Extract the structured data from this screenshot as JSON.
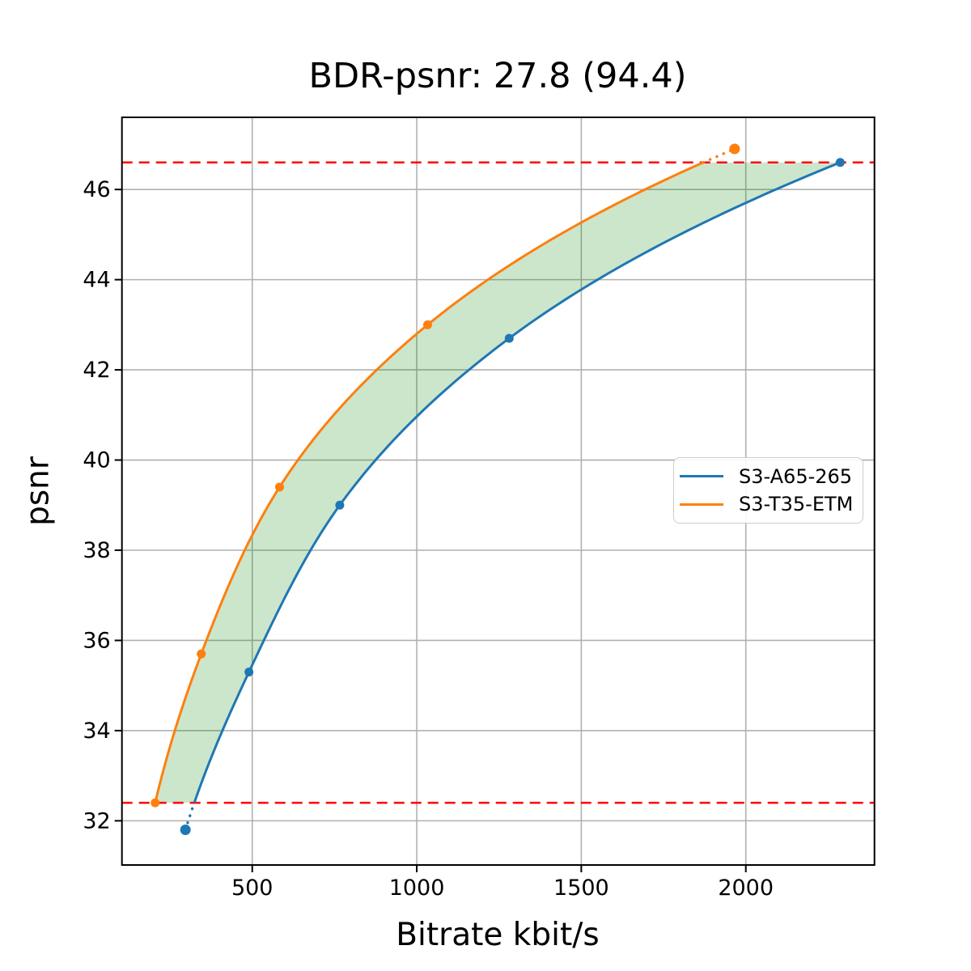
{
  "chart_data": {
    "type": "line",
    "title": "BDR-psnr: 27.8 (94.4)",
    "xlabel": "Bitrate kbit/s",
    "ylabel": "psnr",
    "xlim": [
      104,
      2391
    ],
    "ylim": [
      31.02,
      47.6
    ],
    "x_ticks": [
      500,
      1000,
      1500,
      2000
    ],
    "y_ticks": [
      32,
      34,
      36,
      38,
      40,
      42,
      44,
      46
    ],
    "grid": true,
    "grid_color": "#b0b0b0",
    "legend_position": "center right",
    "series": [
      {
        "name": "S3-A65-265",
        "color": "#1f77b4",
        "points_x_bitrate": [
          297,
          490,
          766,
          1281,
          2287
        ],
        "points_y_psnr": [
          31.8,
          35.3,
          39.0,
          42.7,
          46.6
        ]
      },
      {
        "name": "S3-T35-ETM",
        "color": "#ff7f0e",
        "points_x_bitrate": [
          205,
          345,
          583,
          1033,
          1966
        ],
        "points_y_psnr": [
          32.4,
          35.7,
          39.4,
          43.0,
          46.9
        ]
      }
    ],
    "reference_lines": {
      "color": "#ff0000",
      "style": "dashed",
      "psnr_values": [
        32.4,
        46.6
      ]
    },
    "band": {
      "fill_color": "#008000",
      "opacity": 0.2,
      "psnr_range": [
        32.4,
        46.6
      ]
    },
    "bdr_value": "27.8",
    "bdr_secondary": "94.4"
  }
}
